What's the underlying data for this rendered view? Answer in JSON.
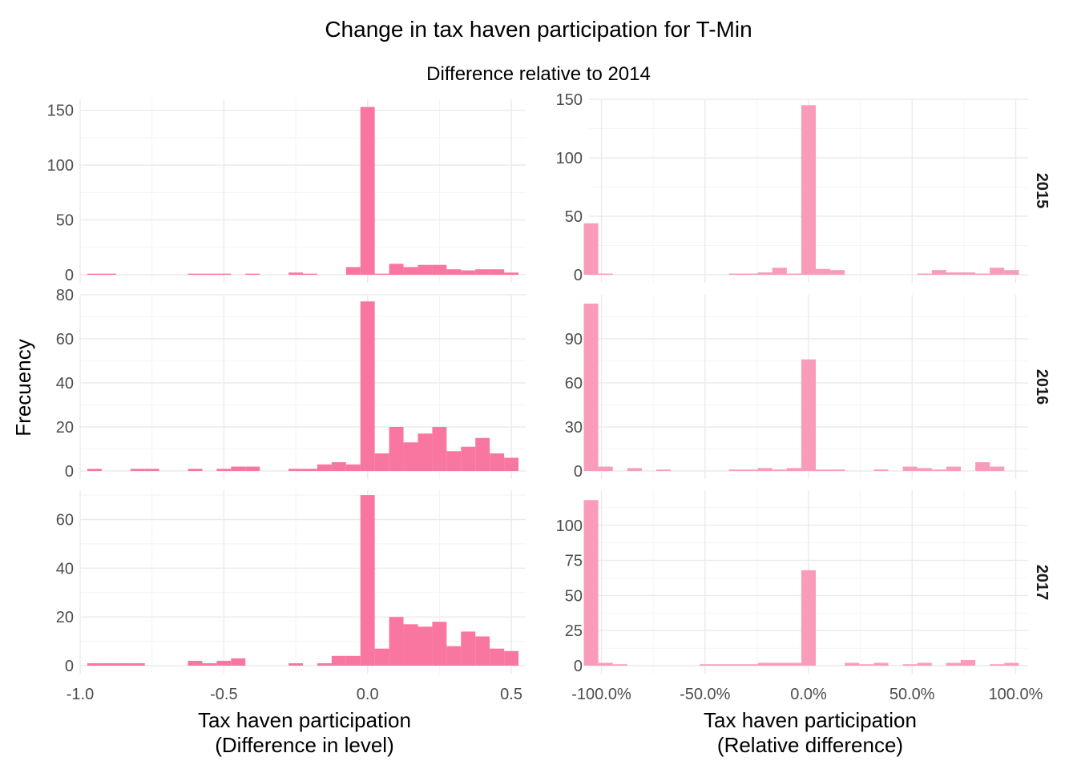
{
  "chart_data": {
    "type": "bar",
    "title": "Change in tax haven participation for T-Min",
    "subtitle": "Difference relative to 2014",
    "ylabel": "Frecuency",
    "colors": {
      "level": "#f8769f",
      "relative": "#f99cba"
    },
    "columns": [
      {
        "xlabel_line1": "Tax haven participation",
        "xlabel_line2": "(Difference in level)",
        "xlim": [
          -1.0,
          0.55
        ],
        "xticks": [
          -1.0,
          -0.5,
          0.0,
          0.5
        ],
        "xtick_labels": [
          "-1.0",
          "-0.5",
          "0.0",
          "0.5"
        ],
        "bin_width": 0.05
      },
      {
        "xlabel_line1": "Tax haven participation",
        "xlabel_line2": "(Relative difference)",
        "xlim": [
          -1.06,
          1.06
        ],
        "xticks": [
          -1.0,
          -0.5,
          0.0,
          0.5,
          1.0
        ],
        "xtick_labels": [
          "-100.0%",
          "-50.0%",
          "0.0%",
          "50.0%",
          "100.0%"
        ],
        "bin_width": 0.07
      }
    ],
    "rows": [
      {
        "strip": "2015",
        "panels": [
          {
            "ylim": [
              0,
              160
            ],
            "yticks": [
              0,
              50,
              100,
              150
            ],
            "bins": [
              [
                -0.95,
                1
              ],
              [
                -0.9,
                1
              ],
              [
                -0.6,
                1
              ],
              [
                -0.55,
                1
              ],
              [
                -0.5,
                1
              ],
              [
                -0.4,
                1
              ],
              [
                -0.25,
                2
              ],
              [
                -0.2,
                1
              ],
              [
                -0.05,
                7
              ],
              [
                0.0,
                153
              ],
              [
                0.05,
                1
              ],
              [
                0.1,
                10
              ],
              [
                0.15,
                7
              ],
              [
                0.2,
                9
              ],
              [
                0.25,
                9
              ],
              [
                0.3,
                5
              ],
              [
                0.35,
                4
              ],
              [
                0.4,
                5
              ],
              [
                0.45,
                5
              ],
              [
                0.5,
                2
              ]
            ]
          },
          {
            "ylim": [
              0,
              150
            ],
            "yticks": [
              0,
              50,
              100,
              150
            ],
            "bins": [
              [
                -1.05,
                44
              ],
              [
                -0.98,
                1
              ],
              [
                -0.35,
                1
              ],
              [
                -0.28,
                1
              ],
              [
                -0.21,
                2
              ],
              [
                -0.14,
                6
              ],
              [
                -0.07,
                1
              ],
              [
                0.0,
                145
              ],
              [
                0.07,
                5
              ],
              [
                0.14,
                4
              ],
              [
                0.56,
                1
              ],
              [
                0.63,
                4
              ],
              [
                0.7,
                2
              ],
              [
                0.77,
                2
              ],
              [
                0.84,
                1
              ],
              [
                0.91,
                6
              ],
              [
                0.98,
                4
              ]
            ]
          }
        ]
      },
      {
        "strip": "2016",
        "panels": [
          {
            "ylim": [
              0,
              80
            ],
            "yticks": [
              0,
              20,
              40,
              60,
              80
            ],
            "bins": [
              [
                -0.95,
                1
              ],
              [
                -0.8,
                1
              ],
              [
                -0.75,
                1
              ],
              [
                -0.6,
                1
              ],
              [
                -0.5,
                1
              ],
              [
                -0.45,
                2
              ],
              [
                -0.4,
                2
              ],
              [
                -0.25,
                1
              ],
              [
                -0.2,
                1
              ],
              [
                -0.15,
                3
              ],
              [
                -0.1,
                4
              ],
              [
                -0.05,
                3
              ],
              [
                0.0,
                77
              ],
              [
                0.05,
                8
              ],
              [
                0.1,
                20
              ],
              [
                0.15,
                13
              ],
              [
                0.2,
                17
              ],
              [
                0.25,
                20
              ],
              [
                0.3,
                9
              ],
              [
                0.35,
                11
              ],
              [
                0.4,
                15
              ],
              [
                0.45,
                8
              ],
              [
                0.5,
                6
              ]
            ]
          },
          {
            "ylim": [
              0,
              120
            ],
            "yticks": [
              0,
              30,
              60,
              90
            ],
            "bins": [
              [
                -1.05,
                114
              ],
              [
                -0.98,
                3
              ],
              [
                -0.84,
                2
              ],
              [
                -0.7,
                1
              ],
              [
                -0.35,
                1
              ],
              [
                -0.28,
                1
              ],
              [
                -0.21,
                2
              ],
              [
                -0.14,
                1
              ],
              [
                -0.07,
                2
              ],
              [
                0.0,
                76
              ],
              [
                0.07,
                1
              ],
              [
                0.14,
                1
              ],
              [
                0.35,
                1
              ],
              [
                0.49,
                3
              ],
              [
                0.56,
                2
              ],
              [
                0.63,
                1
              ],
              [
                0.7,
                3
              ],
              [
                0.84,
                6
              ],
              [
                0.91,
                3
              ]
            ]
          }
        ]
      },
      {
        "strip": "2017",
        "panels": [
          {
            "ylim": [
              0,
              72
            ],
            "yticks": [
              0,
              20,
              40,
              60
            ],
            "bins": [
              [
                -0.95,
                1
              ],
              [
                -0.9,
                1
              ],
              [
                -0.85,
                1
              ],
              [
                -0.8,
                1
              ],
              [
                -0.6,
                2
              ],
              [
                -0.55,
                1
              ],
              [
                -0.5,
                2
              ],
              [
                -0.45,
                3
              ],
              [
                -0.25,
                1
              ],
              [
                -0.15,
                1
              ],
              [
                -0.1,
                4
              ],
              [
                -0.05,
                4
              ],
              [
                0.0,
                70
              ],
              [
                0.05,
                7
              ],
              [
                0.1,
                20
              ],
              [
                0.15,
                17
              ],
              [
                0.2,
                16
              ],
              [
                0.25,
                18
              ],
              [
                0.3,
                8
              ],
              [
                0.35,
                14
              ],
              [
                0.4,
                12
              ],
              [
                0.45,
                7
              ],
              [
                0.5,
                6
              ]
            ]
          },
          {
            "ylim": [
              0,
              125
            ],
            "yticks": [
              0,
              25,
              50,
              75,
              100
            ],
            "bins": [
              [
                -1.05,
                118
              ],
              [
                -0.98,
                2
              ],
              [
                -0.91,
                1
              ],
              [
                -0.49,
                1
              ],
              [
                -0.42,
                1
              ],
              [
                -0.35,
                1
              ],
              [
                -0.28,
                1
              ],
              [
                -0.21,
                2
              ],
              [
                -0.14,
                2
              ],
              [
                -0.07,
                2
              ],
              [
                0.0,
                68
              ],
              [
                0.21,
                2
              ],
              [
                0.28,
                1
              ],
              [
                0.35,
                2
              ],
              [
                0.49,
                1
              ],
              [
                0.56,
                2
              ],
              [
                0.7,
                2
              ],
              [
                0.77,
                4
              ],
              [
                0.91,
                1
              ],
              [
                0.98,
                2
              ]
            ]
          }
        ]
      }
    ]
  }
}
